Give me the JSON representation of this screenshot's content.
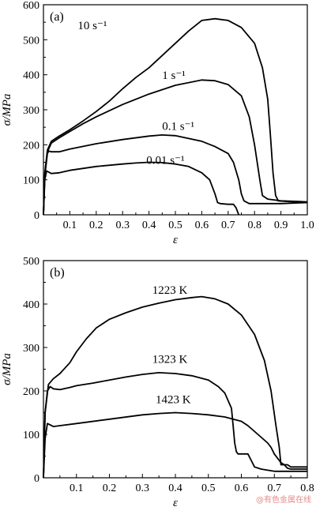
{
  "chart_data": [
    {
      "type": "line",
      "panel": "(a)",
      "xlabel": "ε",
      "ylabel": "σ/MPa",
      "xlim": [
        0,
        1.0
      ],
      "ylim": [
        0,
        600
      ],
      "xticks": [
        "0.1",
        "0.2",
        "0.3",
        "0.4",
        "0.5",
        "0.6",
        "0.7",
        "0.8",
        "0.9",
        "1.0"
      ],
      "yticks": [
        "0",
        "100",
        "200",
        "300",
        "400",
        "500",
        "600"
      ],
      "series": [
        {
          "name": "10 s⁻¹",
          "label_at": [
            0.13,
            530
          ],
          "points": [
            [
              0,
              0
            ],
            [
              0.005,
              120
            ],
            [
              0.015,
              185
            ],
            [
              0.03,
              210
            ],
            [
              0.06,
              225
            ],
            [
              0.1,
              243
            ],
            [
              0.15,
              268
            ],
            [
              0.2,
              295
            ],
            [
              0.25,
              325
            ],
            [
              0.3,
              360
            ],
            [
              0.35,
              392
            ],
            [
              0.4,
              420
            ],
            [
              0.45,
              455
            ],
            [
              0.5,
              490
            ],
            [
              0.55,
              525
            ],
            [
              0.6,
              555
            ],
            [
              0.65,
              560
            ],
            [
              0.7,
              555
            ],
            [
              0.75,
              535
            ],
            [
              0.8,
              490
            ],
            [
              0.83,
              420
            ],
            [
              0.85,
              330
            ],
            [
              0.86,
              230
            ],
            [
              0.87,
              120
            ],
            [
              0.88,
              55
            ],
            [
              0.89,
              40
            ],
            [
              0.93,
              38
            ],
            [
              1.0,
              35
            ]
          ]
        },
        {
          "name": "1 s⁻¹",
          "label_at": [
            0.45,
            388
          ],
          "points": [
            [
              0,
              0
            ],
            [
              0.005,
              115
            ],
            [
              0.015,
              180
            ],
            [
              0.03,
              205
            ],
            [
              0.06,
              220
            ],
            [
              0.1,
              238
            ],
            [
              0.15,
              260
            ],
            [
              0.2,
              280
            ],
            [
              0.3,
              315
            ],
            [
              0.4,
              345
            ],
            [
              0.5,
              370
            ],
            [
              0.6,
              385
            ],
            [
              0.65,
              383
            ],
            [
              0.7,
              372
            ],
            [
              0.75,
              340
            ],
            [
              0.78,
              280
            ],
            [
              0.8,
              200
            ],
            [
              0.82,
              100
            ],
            [
              0.83,
              55
            ],
            [
              0.85,
              45
            ],
            [
              0.9,
              40
            ],
            [
              1.0,
              37
            ]
          ]
        },
        {
          "name": "0.1 s⁻¹",
          "label_at": [
            0.45,
            242
          ],
          "points": [
            [
              0,
              0
            ],
            [
              0.005,
              110
            ],
            [
              0.015,
              175
            ],
            [
              0.02,
              182
            ],
            [
              0.03,
              180
            ],
            [
              0.06,
              180
            ],
            [
              0.1,
              188
            ],
            [
              0.2,
              203
            ],
            [
              0.3,
              215
            ],
            [
              0.4,
              225
            ],
            [
              0.45,
              228
            ],
            [
              0.5,
              226
            ],
            [
              0.6,
              210
            ],
            [
              0.65,
              195
            ],
            [
              0.7,
              175
            ],
            [
              0.72,
              150
            ],
            [
              0.74,
              100
            ],
            [
              0.75,
              60
            ],
            [
              0.76,
              40
            ],
            [
              0.78,
              32
            ],
            [
              0.9,
              32
            ],
            [
              1.0,
              35
            ]
          ]
        },
        {
          "name": "0.01 s⁻¹",
          "label_at": [
            0.39,
            145
          ],
          "points": [
            [
              0,
              0
            ],
            [
              0.005,
              100
            ],
            [
              0.012,
              125
            ],
            [
              0.02,
              122
            ],
            [
              0.03,
              118
            ],
            [
              0.06,
              120
            ],
            [
              0.1,
              127
            ],
            [
              0.2,
              138
            ],
            [
              0.3,
              145
            ],
            [
              0.35,
              148
            ],
            [
              0.4,
              150
            ],
            [
              0.45,
              149
            ],
            [
              0.5,
              145
            ],
            [
              0.55,
              138
            ],
            [
              0.6,
              120
            ],
            [
              0.63,
              100
            ],
            [
              0.65,
              60
            ],
            [
              0.66,
              35
            ],
            [
              0.67,
              32
            ],
            [
              0.7,
              30
            ],
            [
              0.72,
              30
            ],
            [
              0.73,
              20
            ],
            [
              0.74,
              0
            ]
          ]
        }
      ]
    },
    {
      "type": "line",
      "panel": "(b)",
      "xlabel": "ε",
      "ylabel": "σ/MPa",
      "xlim": [
        0,
        0.8
      ],
      "ylim": [
        0,
        500
      ],
      "xticks": [
        "0.1",
        "0.2",
        "0.3",
        "0.4",
        "0.5",
        "0.6",
        "0.7",
        "0.8"
      ],
      "yticks": [
        "0",
        "100",
        "200",
        "300",
        "400",
        "500"
      ],
      "series": [
        {
          "name": "1223 K",
          "label_at": [
            0.33,
            424
          ],
          "points": [
            [
              0,
              0
            ],
            [
              0.005,
              150
            ],
            [
              0.015,
              215
            ],
            [
              0.03,
              228
            ],
            [
              0.05,
              240
            ],
            [
              0.08,
              265
            ],
            [
              0.1,
              290
            ],
            [
              0.13,
              320
            ],
            [
              0.16,
              345
            ],
            [
              0.2,
              365
            ],
            [
              0.25,
              380
            ],
            [
              0.3,
              393
            ],
            [
              0.35,
              402
            ],
            [
              0.4,
              410
            ],
            [
              0.45,
              415
            ],
            [
              0.48,
              417
            ],
            [
              0.52,
              412
            ],
            [
              0.56,
              400
            ],
            [
              0.6,
              375
            ],
            [
              0.64,
              330
            ],
            [
              0.67,
              270
            ],
            [
              0.69,
              200
            ],
            [
              0.705,
              120
            ],
            [
              0.715,
              70
            ],
            [
              0.72,
              30
            ],
            [
              0.74,
              30
            ],
            [
              0.75,
              25
            ],
            [
              0.8,
              25
            ]
          ]
        },
        {
          "name": "1323 K",
          "label_at": [
            0.33,
            265
          ],
          "points": [
            [
              0,
              0
            ],
            [
              0.005,
              150
            ],
            [
              0.012,
              200
            ],
            [
              0.02,
              210
            ],
            [
              0.03,
              205
            ],
            [
              0.05,
              203
            ],
            [
              0.08,
              208
            ],
            [
              0.1,
              212
            ],
            [
              0.15,
              218
            ],
            [
              0.2,
              225
            ],
            [
              0.25,
              232
            ],
            [
              0.3,
              238
            ],
            [
              0.35,
              242
            ],
            [
              0.4,
              240
            ],
            [
              0.45,
              235
            ],
            [
              0.5,
              225
            ],
            [
              0.53,
              210
            ],
            [
              0.55,
              195
            ],
            [
              0.57,
              160
            ],
            [
              0.575,
              120
            ],
            [
              0.58,
              80
            ],
            [
              0.585,
              60
            ],
            [
              0.59,
              55
            ],
            [
              0.6,
              55
            ],
            [
              0.62,
              55
            ],
            [
              0.63,
              40
            ],
            [
              0.64,
              25
            ],
            [
              0.66,
              20
            ],
            [
              0.7,
              15
            ],
            [
              0.8,
              15
            ]
          ]
        },
        {
          "name": "1423 K",
          "label_at": [
            0.34,
            172
          ],
          "points": [
            [
              0,
              0
            ],
            [
              0.005,
              90
            ],
            [
              0.012,
              125
            ],
            [
              0.02,
              122
            ],
            [
              0.03,
              118
            ],
            [
              0.05,
              120
            ],
            [
              0.1,
              125
            ],
            [
              0.2,
              135
            ],
            [
              0.3,
              145
            ],
            [
              0.35,
              148
            ],
            [
              0.4,
              150
            ],
            [
              0.45,
              148
            ],
            [
              0.5,
              145
            ],
            [
              0.55,
              140
            ],
            [
              0.6,
              130
            ],
            [
              0.62,
              120
            ],
            [
              0.65,
              100
            ],
            [
              0.68,
              80
            ],
            [
              0.69,
              70
            ],
            [
              0.7,
              55
            ],
            [
              0.72,
              35
            ],
            [
              0.73,
              30
            ],
            [
              0.74,
              22
            ],
            [
              0.75,
              20
            ],
            [
              0.8,
              20
            ]
          ]
        }
      ]
    }
  ],
  "watermark": "@有色金属在线"
}
